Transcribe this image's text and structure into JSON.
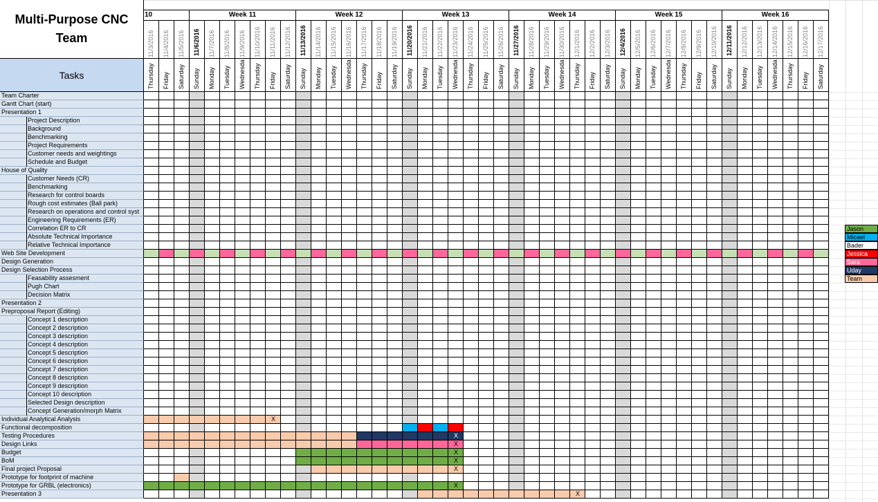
{
  "title": "Multi-Purpose CNC Team",
  "tasks_header": "Tasks",
  "week_partial": "10",
  "weeks": [
    "Week 11",
    "Week 12",
    "Week 13",
    "Week 14",
    "Week 15",
    "Week 16"
  ],
  "dates": [
    "11/3/2016",
    "11/4/2016",
    "11/5/2016",
    "11/6/2016",
    "11/7/2016",
    "11/8/2016",
    "11/9/2016",
    "11/10/2016",
    "11/11/2016",
    "11/12/2016",
    "11/13/2016",
    "11/14/2016",
    "11/15/2016",
    "11/16/2016",
    "11/17/2016",
    "11/18/2016",
    "11/19/2016",
    "11/20/2016",
    "11/21/2016",
    "11/22/2016",
    "11/23/2016",
    "11/24/2016",
    "11/25/2016",
    "11/26/2016",
    "11/27/2016",
    "11/28/2016",
    "11/29/2016",
    "11/30/2016",
    "12/1/2016",
    "12/2/2016",
    "12/3/2016",
    "12/4/2016",
    "12/5/2016",
    "12/6/2016",
    "12/7/2016",
    "12/8/2016",
    "12/9/2016",
    "12/10/2016",
    "12/11/2016",
    "12/12/2016",
    "12/13/2016",
    "12/14/2016",
    "12/15/2016",
    "12/16/2016",
    "12/17/2016"
  ],
  "days": [
    "Thursday",
    "Friday",
    "Saturday",
    "Sunday",
    "Monday",
    "Tuesday",
    "Wednesda",
    "Thursday",
    "Friday",
    "Saturday",
    "Sunday",
    "Monday",
    "Tuesday",
    "Wednesda",
    "Thursday",
    "Friday",
    "Saturday",
    "Sunday",
    "Monday",
    "Tuesday",
    "Wednesda",
    "Thursday",
    "Friday",
    "Saturday",
    "Sunday",
    "Monday",
    "Tuesday",
    "Wednesda",
    "Thursday",
    "Friday",
    "Saturday",
    "Sunday",
    "Monday",
    "Tuesday",
    "Wednesda",
    "Thursday",
    "Friday",
    "Saturday",
    "Sunday",
    "Monday",
    "Tuesday",
    "Wednesda",
    "Thursday",
    "Friday",
    "Saturday"
  ],
  "tasks": [
    {
      "label": "Team Charter",
      "indent": false
    },
    {
      "label": "Gantt Chart (start)",
      "indent": false
    },
    {
      "label": "Presentation 1",
      "indent": false
    },
    {
      "label": "Project Description",
      "indent": true
    },
    {
      "label": "Background",
      "indent": true
    },
    {
      "label": "Benchmarking",
      "indent": true
    },
    {
      "label": "Project Requirements",
      "indent": true
    },
    {
      "label": "Customer needs and weightings",
      "indent": true
    },
    {
      "label": "Schedule and Budget",
      "indent": true
    },
    {
      "label": "House of Quality",
      "indent": false
    },
    {
      "label": "Customer Needs (CR)",
      "indent": true
    },
    {
      "label": "Benchmarking",
      "indent": true
    },
    {
      "label": "Research for control boards",
      "indent": true
    },
    {
      "label": "Rough cost estimates (Ball park)",
      "indent": true
    },
    {
      "label": "Research on operations and control syst",
      "indent": true
    },
    {
      "label": "Engineering Requirements (ER)",
      "indent": true
    },
    {
      "label": "Correlation ER to CR",
      "indent": true
    },
    {
      "label": "Absolute Technical Importance",
      "indent": true
    },
    {
      "label": "Relative Technical Importance",
      "indent": true
    },
    {
      "label": "Web Site Development",
      "indent": false
    },
    {
      "label": "Design Generation",
      "indent": false
    },
    {
      "label": "Design Selection Process",
      "indent": false
    },
    {
      "label": "Feasability assesment",
      "indent": true
    },
    {
      "label": "Pugh Chart",
      "indent": true
    },
    {
      "label": "Decision Matrix",
      "indent": true
    },
    {
      "label": "Presentation 2",
      "indent": false
    },
    {
      "label": "Preproposal Report (Editing)",
      "indent": false
    },
    {
      "label": "Concept 1 description",
      "indent": true
    },
    {
      "label": "Concept 2 description",
      "indent": true
    },
    {
      "label": "Concept 3 description",
      "indent": true
    },
    {
      "label": "Concept 4 description",
      "indent": true
    },
    {
      "label": "Concept 5 description",
      "indent": true
    },
    {
      "label": "Concept 6 description",
      "indent": true
    },
    {
      "label": "Concept 7 description",
      "indent": true
    },
    {
      "label": "Concept 8 description",
      "indent": true
    },
    {
      "label": "Concept 9 description",
      "indent": true
    },
    {
      "label": "Concept 10 description",
      "indent": true
    },
    {
      "label": "Selected Design description",
      "indent": true
    },
    {
      "label": "Concept Generation/morph Matrix",
      "indent": true
    },
    {
      "label": "Individual Analytical Analysis",
      "indent": false
    },
    {
      "label": "Functional decomposition",
      "indent": false
    },
    {
      "label": "Testing Procedures",
      "indent": false
    },
    {
      "label": "Design Links",
      "indent": false
    },
    {
      "label": "Budget",
      "indent": false
    },
    {
      "label": "BoM",
      "indent": false
    },
    {
      "label": "Final project Proposal",
      "indent": false
    },
    {
      "label": "Prototype for footprint of machine",
      "indent": false
    },
    {
      "label": "Prototype for GRBL (electronics)",
      "indent": false
    },
    {
      "label": "Presentation 3",
      "indent": false
    }
  ],
  "legend": [
    {
      "name": "Jason",
      "color": "#70ad47",
      "text": "#000000"
    },
    {
      "name": "Micael",
      "color": "#00b0f0",
      "text": "#000000"
    },
    {
      "name": "Bader",
      "color": "#ffffff",
      "text": "#000000"
    },
    {
      "name": "Jessica",
      "color": "#ff0000",
      "text": "#ffffff"
    },
    {
      "name": "Sara",
      "color": "#ff6699",
      "text": "#ffffff"
    },
    {
      "name": "Uday",
      "color": "#1f3864",
      "text": "#ffffff"
    },
    {
      "name": "Team",
      "color": "#f8cbad",
      "text": "#000000"
    }
  ],
  "colors": {
    "weekend_gray": "#d9d9d9",
    "task_bg": "#dce6f1",
    "header_bg": "#c5d9f1",
    "web_green": "#c6e0b4"
  },
  "completion_mark": "X",
  "bars": [
    {
      "row": 19,
      "pattern": "web"
    },
    {
      "row": 39,
      "from": 0,
      "to": 8,
      "color": "Team",
      "x_at": 8
    },
    {
      "row": 40,
      "cells": [
        [
          17,
          "Micael"
        ],
        [
          18,
          "Jessica"
        ],
        [
          19,
          "Micael"
        ],
        [
          20,
          "Jessica"
        ]
      ]
    },
    {
      "row": 41,
      "from": 0,
      "to": 13,
      "color": "Team"
    },
    {
      "row": 41,
      "from": 14,
      "to": 20,
      "color": "Uday",
      "x_at": 20
    },
    {
      "row": 42,
      "from": 0,
      "to": 13,
      "color": "Team"
    },
    {
      "row": 42,
      "from": 14,
      "to": 20,
      "color": "Sara",
      "x_at": 20
    },
    {
      "row": 43,
      "from": 10,
      "to": 20,
      "color": "Jason",
      "x_at": 20
    },
    {
      "row": 44,
      "from": 10,
      "to": 20,
      "color": "Jason",
      "x_at": 20
    },
    {
      "row": 45,
      "from": 11,
      "to": 20,
      "color": "Team",
      "x_at": 20
    },
    {
      "row": 46,
      "from": 2,
      "to": 2,
      "color": "Team"
    },
    {
      "row": 47,
      "from": 0,
      "to": 20,
      "color": "Jason",
      "x_at": 20
    },
    {
      "row": 48,
      "from": 18,
      "to": 28,
      "color": "Team",
      "x_at": 28
    }
  ]
}
